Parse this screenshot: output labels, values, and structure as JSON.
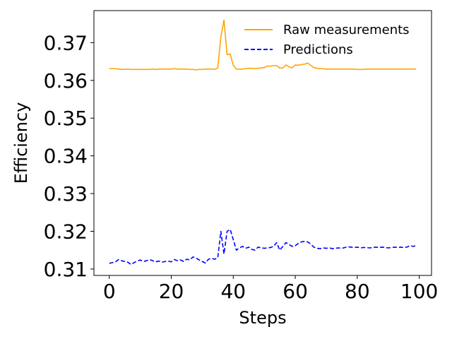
{
  "chart_data": {
    "type": "line",
    "xlabel": "Steps",
    "ylabel": "Efficiency",
    "xlim": [
      -4.95,
      103.95
    ],
    "ylim": [
      0.3083,
      0.3785
    ],
    "xticks": [
      0,
      20,
      40,
      60,
      80,
      100
    ],
    "xtick_labels": [
      "0",
      "20",
      "40",
      "60",
      "80",
      "100"
    ],
    "yticks": [
      0.31,
      0.32,
      0.33,
      0.34,
      0.35,
      0.36,
      0.37
    ],
    "ytick_labels": [
      "0.31",
      "0.32",
      "0.33",
      "0.34",
      "0.35",
      "0.36",
      "0.37"
    ],
    "grid": false,
    "legend_position": "upper right",
    "series": [
      {
        "name": "Raw measurements",
        "color": "#ffa500",
        "style": "solid",
        "x": [
          0,
          1,
          2,
          3,
          4,
          5,
          6,
          7,
          8,
          9,
          10,
          11,
          12,
          13,
          14,
          15,
          16,
          17,
          18,
          19,
          20,
          21,
          22,
          23,
          24,
          25,
          26,
          27,
          28,
          29,
          30,
          31,
          32,
          33,
          34,
          35,
          36,
          37,
          38,
          39,
          40,
          41,
          42,
          43,
          44,
          45,
          46,
          47,
          48,
          49,
          50,
          51,
          52,
          53,
          54,
          55,
          56,
          57,
          58,
          59,
          60,
          61,
          62,
          63,
          64,
          65,
          66,
          67,
          68,
          69,
          70,
          71,
          72,
          73,
          74,
          75,
          76,
          77,
          78,
          79,
          80,
          81,
          82,
          83,
          84,
          85,
          86,
          87,
          88,
          89,
          90,
          91,
          92,
          93,
          94,
          95,
          96,
          97,
          98,
          99
        ],
        "y": [
          0.3631,
          0.3631,
          0.3631,
          0.363,
          0.3629,
          0.3629,
          0.363,
          0.3629,
          0.3629,
          0.3629,
          0.3629,
          0.3629,
          0.3629,
          0.3629,
          0.363,
          0.3629,
          0.363,
          0.363,
          0.363,
          0.363,
          0.363,
          0.3631,
          0.363,
          0.363,
          0.363,
          0.363,
          0.3629,
          0.3629,
          0.3628,
          0.3629,
          0.3629,
          0.363,
          0.363,
          0.363,
          0.3629,
          0.3633,
          0.3715,
          0.376,
          0.3668,
          0.367,
          0.364,
          0.363,
          0.363,
          0.363,
          0.3631,
          0.3632,
          0.3632,
          0.3631,
          0.3632,
          0.3633,
          0.3634,
          0.3638,
          0.3638,
          0.3639,
          0.3639,
          0.3633,
          0.3633,
          0.3641,
          0.3636,
          0.3633,
          0.3641,
          0.364,
          0.3642,
          0.3643,
          0.3646,
          0.364,
          0.3634,
          0.3632,
          0.3631,
          0.3631,
          0.363,
          0.363,
          0.363,
          0.363,
          0.363,
          0.363,
          0.363,
          0.363,
          0.363,
          0.363,
          0.3629,
          0.3629,
          0.3629,
          0.363,
          0.363,
          0.363,
          0.363,
          0.363,
          0.363,
          0.363,
          0.363,
          0.363,
          0.363,
          0.363,
          0.363,
          0.363,
          0.363,
          0.363,
          0.363,
          0.363
        ]
      },
      {
        "name": "Predictions",
        "color": "#0000ff",
        "style": "dashed",
        "x": [
          0,
          1,
          2,
          3,
          4,
          5,
          6,
          7,
          8,
          9,
          10,
          11,
          12,
          13,
          14,
          15,
          16,
          17,
          18,
          19,
          20,
          21,
          22,
          23,
          24,
          25,
          26,
          27,
          28,
          29,
          30,
          31,
          32,
          33,
          34,
          35,
          36,
          37,
          38,
          39,
          40,
          41,
          42,
          43,
          44,
          45,
          46,
          47,
          48,
          49,
          50,
          51,
          52,
          53,
          54,
          55,
          56,
          57,
          58,
          59,
          60,
          61,
          62,
          63,
          64,
          65,
          66,
          67,
          68,
          69,
          70,
          71,
          72,
          73,
          74,
          75,
          76,
          77,
          78,
          79,
          80,
          81,
          82,
          83,
          84,
          85,
          86,
          87,
          88,
          89,
          90,
          91,
          92,
          93,
          94,
          95,
          96,
          97,
          98,
          99
        ],
        "y": [
          0.3115,
          0.3117,
          0.3119,
          0.3125,
          0.3122,
          0.312,
          0.3118,
          0.3112,
          0.3117,
          0.3121,
          0.3124,
          0.312,
          0.3122,
          0.3125,
          0.3122,
          0.3119,
          0.3121,
          0.3118,
          0.312,
          0.3121,
          0.3119,
          0.3125,
          0.3122,
          0.3124,
          0.312,
          0.3126,
          0.3124,
          0.3132,
          0.3129,
          0.3124,
          0.312,
          0.3116,
          0.3126,
          0.3128,
          0.3126,
          0.313,
          0.32,
          0.314,
          0.32,
          0.3205,
          0.3178,
          0.315,
          0.3156,
          0.316,
          0.3155,
          0.3158,
          0.3152,
          0.315,
          0.3158,
          0.3156,
          0.3155,
          0.3156,
          0.3157,
          0.316,
          0.317,
          0.315,
          0.316,
          0.317,
          0.3165,
          0.316,
          0.3162,
          0.3168,
          0.3172,
          0.3173,
          0.3172,
          0.3166,
          0.3158,
          0.3155,
          0.3154,
          0.3156,
          0.3155,
          0.3156,
          0.3154,
          0.3155,
          0.3156,
          0.3155,
          0.3157,
          0.3159,
          0.3158,
          0.3157,
          0.3158,
          0.3156,
          0.3157,
          0.3157,
          0.3156,
          0.3157,
          0.3158,
          0.3157,
          0.3158,
          0.3157,
          0.3156,
          0.3157,
          0.3158,
          0.3157,
          0.3158,
          0.3157,
          0.3158,
          0.3162,
          0.316,
          0.3162
        ]
      }
    ]
  }
}
